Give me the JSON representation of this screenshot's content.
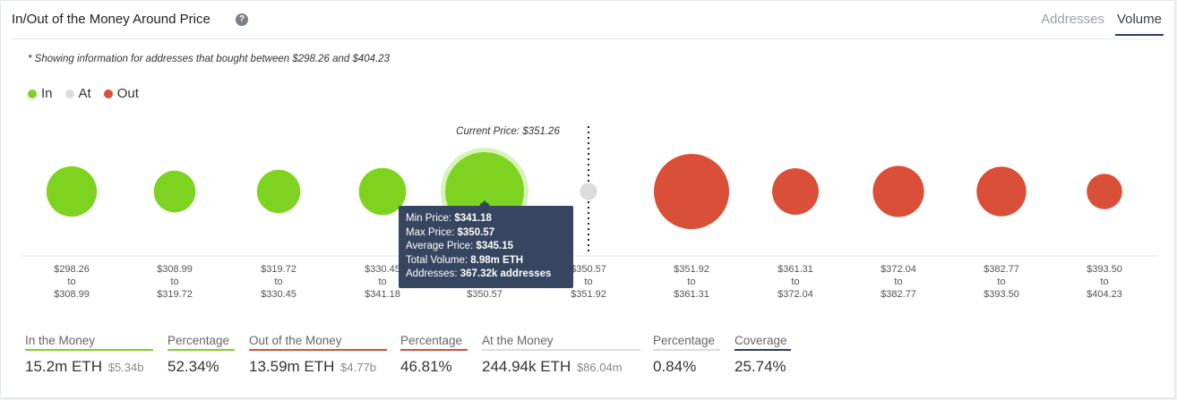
{
  "header": {
    "title": "In/Out of the Money Around Price",
    "help_icon": "question-icon",
    "help_glyph": "?",
    "tabs": [
      {
        "label": "Addresses",
        "active": false
      },
      {
        "label": "Volume",
        "active": true
      }
    ]
  },
  "note": "* Showing information for addresses that bought between $298.26 and $404.23",
  "legend": [
    {
      "label": "In",
      "color": "#7ed321"
    },
    {
      "label": "At",
      "color": "#dcdcdc"
    },
    {
      "label": "Out",
      "color": "#d94f38"
    }
  ],
  "chart_data": {
    "type": "bubble",
    "current_price_label": "Current Price: $351.26",
    "series_colors": {
      "in": "#7ed321",
      "at": "#dcdcdc",
      "out": "#d94f38"
    },
    "bubbles": [
      {
        "range": [
          "$298.26",
          "to",
          "$308.99"
        ],
        "status": "in",
        "relative_size": 0.64
      },
      {
        "range": [
          "$308.99",
          "to",
          "$319.72"
        ],
        "status": "in",
        "relative_size": 0.53
      },
      {
        "range": [
          "$319.72",
          "to",
          "$330.45"
        ],
        "status": "in",
        "relative_size": 0.55
      },
      {
        "range": [
          "$330.45",
          "to",
          "$341.18"
        ],
        "status": "in",
        "relative_size": 0.6
      },
      {
        "range": [
          "$341.18",
          "to",
          "$350.57"
        ],
        "status": "in",
        "relative_size": 1.0
      },
      {
        "range": [
          "$350.57",
          "to",
          "$351.92"
        ],
        "status": "at",
        "relative_size": 0.22
      },
      {
        "range": [
          "$351.92",
          "to",
          "$361.31"
        ],
        "status": "out",
        "relative_size": 1.0
      },
      {
        "range": [
          "$361.31",
          "to",
          "$372.04"
        ],
        "status": "out",
        "relative_size": 0.59
      },
      {
        "range": [
          "$372.04",
          "to",
          "$382.77"
        ],
        "status": "out",
        "relative_size": 0.65
      },
      {
        "range": [
          "$382.77",
          "to",
          "$393.50"
        ],
        "status": "out",
        "relative_size": 0.63
      },
      {
        "range": [
          "$393.50",
          "to",
          "$404.23"
        ],
        "status": "out",
        "relative_size": 0.45
      }
    ],
    "highlighted_index": 4
  },
  "tooltip": {
    "rows": [
      {
        "label": "Min Price: ",
        "value": "$341.18"
      },
      {
        "label": "Max Price: ",
        "value": "$350.57"
      },
      {
        "label": "Average Price: ",
        "value": "$345.15"
      },
      {
        "label": "Total Volume: ",
        "value": "8.98m ETH"
      },
      {
        "label": "Addresses: ",
        "value": "367.32k addresses"
      }
    ]
  },
  "stats": [
    {
      "label": "In the Money",
      "value": "15.2m ETH",
      "sub": "$5.34b",
      "underline": "#7ed321"
    },
    {
      "label": "Percentage",
      "value": "52.34%",
      "sub": "",
      "underline": "#7ed321"
    },
    {
      "label": "Out of the Money",
      "value": "13.59m ETH",
      "sub": "$4.77b",
      "underline": "#d94f38"
    },
    {
      "label": "Percentage",
      "value": "46.81%",
      "sub": "",
      "underline": "#d94f38"
    },
    {
      "label": "At the Money",
      "value": "244.94k ETH",
      "sub": "$86.04m",
      "underline": "#dcdcdc"
    },
    {
      "label": "Percentage",
      "value": "0.84%",
      "sub": "",
      "underline": "#dcdcdc"
    },
    {
      "label": "Coverage",
      "value": "25.74%",
      "sub": "",
      "underline": "#2f3d6b"
    }
  ]
}
